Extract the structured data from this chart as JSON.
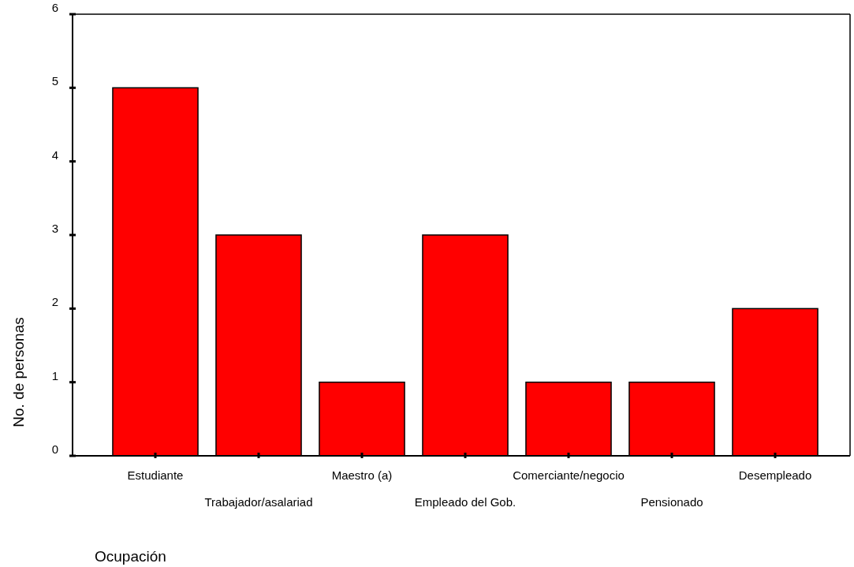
{
  "chart_data": {
    "type": "bar",
    "xlabel": "Ocupación",
    "ylabel": "No. de personas",
    "categories": [
      "Estudiante",
      "Trabajador/asalariad",
      "Maestro (a)",
      "Empleado del Gob.",
      "Comerciante/negocio",
      "Pensionado",
      "Desempleado"
    ],
    "values": [
      5,
      3,
      1,
      3,
      1,
      1,
      2
    ],
    "color": "#ff0000",
    "ylim": [
      0,
      6
    ],
    "yticks": [
      0,
      1,
      2,
      3,
      4,
      5,
      6
    ],
    "grid": false
  }
}
